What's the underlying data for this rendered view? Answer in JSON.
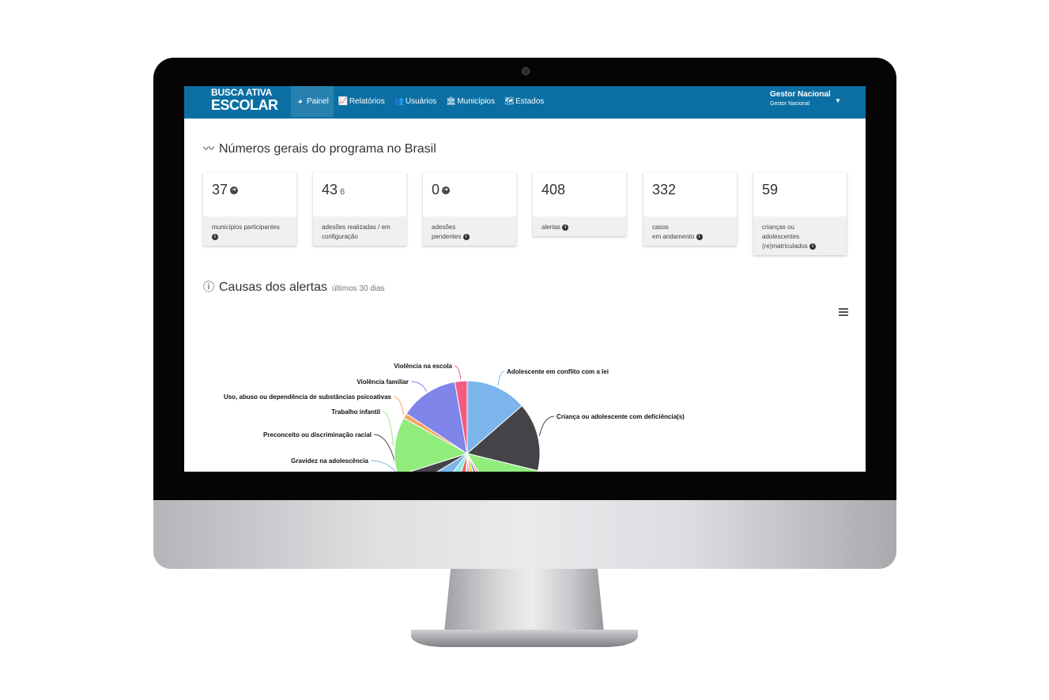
{
  "navbar": {
    "brand_line1": "BUSCA ATIVA",
    "brand_line2": "ESCOLAR",
    "items": [
      {
        "label": "Painel",
        "icon": "dashboard-icon",
        "glyph": "◕",
        "active": true
      },
      {
        "label": "Relatórios",
        "icon": "chart-icon",
        "glyph": "📈"
      },
      {
        "label": "Usuários",
        "icon": "users-icon",
        "glyph": "👥"
      },
      {
        "label": "Municípios",
        "icon": "institution-icon",
        "glyph": "🏛"
      },
      {
        "label": "Estados",
        "icon": "map-icon",
        "glyph": "🗺"
      }
    ],
    "user": {
      "name": "Gestor Nacional",
      "role": "Gestor Nacional"
    }
  },
  "overview": {
    "title": "Números gerais do programa no Brasil",
    "title_icon": "trend-line-icon",
    "cards": [
      {
        "value": "37",
        "extra": "",
        "arrow": true,
        "label_lines": [
          "municípios participantes"
        ],
        "info": true
      },
      {
        "value": "43",
        "extra": "6",
        "arrow": false,
        "label_lines": [
          "adesões realizadas / em",
          "configuração"
        ],
        "info": false
      },
      {
        "value": "0",
        "extra": "",
        "arrow": true,
        "label_lines": [
          "adesões",
          "pendentes"
        ],
        "info": true
      },
      {
        "value": "408",
        "extra": "",
        "arrow": false,
        "label_lines": [
          "alertas"
        ],
        "info": true
      },
      {
        "value": "332",
        "extra": "",
        "arrow": false,
        "label_lines": [
          "casos",
          "em andamento"
        ],
        "info": true
      },
      {
        "value": "59",
        "extra": "",
        "arrow": false,
        "label_lines": [
          "crianças ou",
          "adolescentes",
          "(re)matriculados"
        ],
        "info": true
      }
    ]
  },
  "alerts": {
    "title": "Causas dos alertas",
    "subtitle": "últimos 30 dias",
    "title_icon": "info-circle-icon",
    "menu_icon": "hamburger-menu-icon"
  },
  "chart_data": {
    "type": "pie",
    "title": "Causas dos alertas",
    "slices": [
      {
        "name": "Adolescente em conflito com a lei",
        "value": 12.5,
        "color": "#7cb5ec"
      },
      {
        "name": "Criança ou adolescente com deficiência(s)",
        "value": 14.0,
        "color": "#434348"
      },
      {
        "name": "",
        "value": 11.5,
        "color": "#90ed7d"
      },
      {
        "name": "",
        "value": 1.5,
        "color": "#f7a35c"
      },
      {
        "name": "",
        "value": 2.0,
        "color": "#8085e9"
      },
      {
        "name": "",
        "value": 3.0,
        "color": "#e4d354"
      },
      {
        "name": "",
        "value": 1.5,
        "color": "#f15c80"
      },
      {
        "name": "",
        "value": 1.0,
        "color": "#2b908f"
      },
      {
        "name": "",
        "value": 3.5,
        "color": "#f45b5b"
      },
      {
        "name": "",
        "value": 5.0,
        "color": "#91e8e1"
      },
      {
        "name": "Gravidez na adolescência",
        "value": 5.5,
        "color": "#7cb5ec"
      },
      {
        "name": "Preconceito ou discriminação racial",
        "value": 3.5,
        "color": "#434348"
      },
      {
        "name": "Trabalho infantil",
        "value": 12.0,
        "color": "#90ed7d"
      },
      {
        "name": "Uso, abuso ou dependência de substâncias psicoativas",
        "value": 1.0,
        "color": "#f7a35c"
      },
      {
        "name": "Violência familiar",
        "value": 12.0,
        "color": "#8085e9"
      },
      {
        "name": "Violência na escola",
        "value": 2.5,
        "color": "#f15c80"
      }
    ]
  }
}
